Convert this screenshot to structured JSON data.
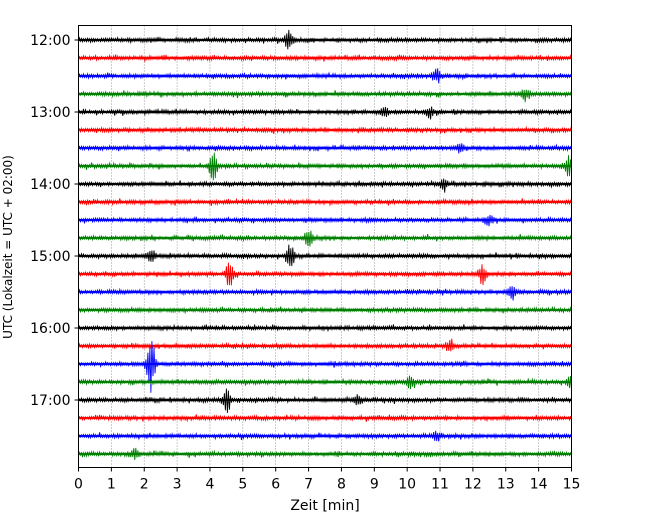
{
  "chart_data": {
    "type": "line",
    "title": "",
    "xlabel": "Zeit  [min]",
    "ylabel": "UTC (Lokalzeit = UTC + 02:00)",
    "xlim": [
      0,
      15
    ],
    "x_ticks": [
      "0",
      "1",
      "2",
      "3",
      "4",
      "5",
      "6",
      "7",
      "8",
      "9",
      "10",
      "11",
      "12",
      "13",
      "14",
      "15"
    ],
    "y_tick_labels": [
      "12:00",
      "13:00",
      "14:00",
      "15:00",
      "16:00",
      "17:00"
    ],
    "grid": "vertical dotted",
    "trace_colors": [
      "#000000",
      "#ff0000",
      "#0000ff",
      "#008000"
    ],
    "traces": [
      {
        "start": "12:00",
        "bursts": [
          {
            "x": 6.4,
            "amp": 1.0
          }
        ]
      },
      {
        "start": "12:15",
        "bursts": []
      },
      {
        "start": "12:30",
        "bursts": [
          {
            "x": 10.9,
            "amp": 0.8
          }
        ]
      },
      {
        "start": "12:45",
        "bursts": [
          {
            "x": 13.6,
            "amp": 0.7
          }
        ]
      },
      {
        "start": "13:00",
        "bursts": [
          {
            "x": 9.3,
            "amp": 0.7
          },
          {
            "x": 10.7,
            "amp": 0.6
          }
        ]
      },
      {
        "start": "13:15",
        "bursts": []
      },
      {
        "start": "13:30",
        "bursts": [
          {
            "x": 11.6,
            "amp": 0.6
          }
        ]
      },
      {
        "start": "13:45",
        "bursts": [
          {
            "x": 4.1,
            "amp": 1.6
          },
          {
            "x": 14.9,
            "amp": 1.0
          }
        ]
      },
      {
        "start": "14:00",
        "bursts": [
          {
            "x": 11.1,
            "amp": 0.8
          }
        ]
      },
      {
        "start": "14:15",
        "bursts": []
      },
      {
        "start": "14:30",
        "bursts": [
          {
            "x": 12.5,
            "amp": 0.6
          }
        ]
      },
      {
        "start": "14:45",
        "bursts": [
          {
            "x": 7.0,
            "amp": 1.0
          }
        ]
      },
      {
        "start": "15:00",
        "bursts": [
          {
            "x": 6.45,
            "amp": 1.5
          },
          {
            "x": 2.2,
            "amp": 0.7
          }
        ]
      },
      {
        "start": "15:15",
        "bursts": [
          {
            "x": 4.6,
            "amp": 1.4
          },
          {
            "x": 12.3,
            "amp": 1.0
          }
        ]
      },
      {
        "start": "15:30",
        "bursts": [
          {
            "x": 13.2,
            "amp": 0.8
          }
        ]
      },
      {
        "start": "15:45",
        "bursts": []
      },
      {
        "start": "16:00",
        "bursts": []
      },
      {
        "start": "16:15",
        "bursts": [
          {
            "x": 11.3,
            "amp": 0.7
          }
        ]
      },
      {
        "start": "16:30",
        "bursts": [
          {
            "x": 2.2,
            "amp": 3.2
          }
        ]
      },
      {
        "start": "16:45",
        "bursts": [
          {
            "x": 10.1,
            "amp": 0.7
          },
          {
            "x": 15.0,
            "amp": 0.8
          }
        ]
      },
      {
        "start": "17:00",
        "bursts": [
          {
            "x": 4.5,
            "amp": 1.5
          },
          {
            "x": 8.5,
            "amp": 0.6
          }
        ]
      },
      {
        "start": "17:15",
        "bursts": []
      },
      {
        "start": "17:30",
        "bursts": [
          {
            "x": 10.9,
            "amp": 0.5
          }
        ]
      },
      {
        "start": "17:45",
        "bursts": [
          {
            "x": 1.7,
            "amp": 0.6
          }
        ]
      }
    ]
  }
}
